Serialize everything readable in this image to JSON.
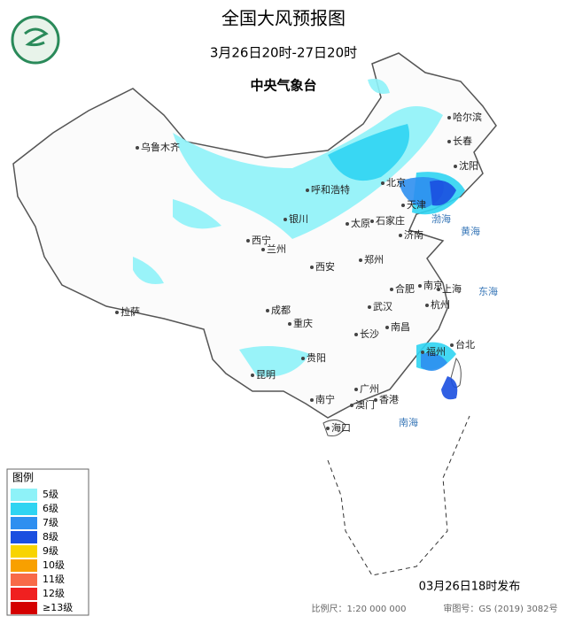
{
  "header": {
    "title": "全国大风预报图",
    "period": "3月26日20时-27日20时",
    "issuer": "中央气象台"
  },
  "legend": {
    "title": "图例",
    "items": [
      {
        "label": "5级",
        "color": "#8ef2f8"
      },
      {
        "label": "6级",
        "color": "#2fd4f2"
      },
      {
        "label": "7级",
        "color": "#2e8ff0"
      },
      {
        "label": "8级",
        "color": "#1b4fe0"
      },
      {
        "label": "9级",
        "color": "#f8d400"
      },
      {
        "label": "10级",
        "color": "#f8a000"
      },
      {
        "label": "11级",
        "color": "#f86a48"
      },
      {
        "label": "12级",
        "color": "#f02020"
      },
      {
        "label": "≥13级",
        "color": "#d40000"
      }
    ]
  },
  "cities": [
    "乌鲁木齐",
    "哈尔滨",
    "长春",
    "沈阳",
    "呼和浩特",
    "北京",
    "天津",
    "石家庄",
    "太原",
    "济南",
    "银川",
    "西宁",
    "兰州",
    "郑州",
    "西安",
    "合肥",
    "南京",
    "上海",
    "杭州",
    "成都",
    "武汉",
    "重庆",
    "长沙",
    "南昌",
    "拉萨",
    "福州",
    "台北",
    "贵阳",
    "昆明",
    "南宁",
    "广州",
    "澳门",
    "香港",
    "海口"
  ],
  "seas": [
    "渤海",
    "黄海",
    "东海",
    "南海"
  ],
  "footer": {
    "issued": "03月26日18时发布",
    "scale": "比例尺：1:20 000 000",
    "map_number": "审图号：GS (2019) 3082号"
  }
}
